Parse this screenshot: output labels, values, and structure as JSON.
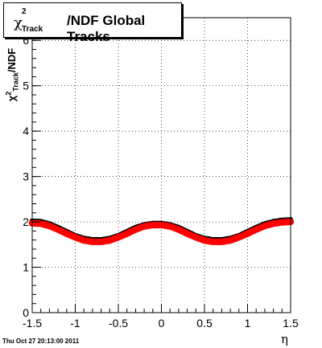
{
  "title": {
    "chi": "χ",
    "sup": "2",
    "sub": "Track",
    "main": "/NDF  Global Tracks"
  },
  "y_axis_label": {
    "chi": "χ",
    "sup": "2",
    "sub": "Track",
    "rest": "/NDF"
  },
  "x_axis_label": "η",
  "timestamp": "Thu Oct 27 20:13:00 2011",
  "chart_data": {
    "type": "scatter",
    "title": "χ²Track/NDF  Global Tracks",
    "xlabel": "η",
    "ylabel": "χ²Track/NDF",
    "xlim": [
      -1.5,
      1.5
    ],
    "ylim": [
      0,
      6.5
    ],
    "x_ticks": [
      "-1.5",
      "-1",
      "-0.5",
      "0",
      "0.5",
      "1",
      "1.5"
    ],
    "y_ticks": [
      "0",
      "1",
      "2",
      "3",
      "4",
      "5",
      "6"
    ],
    "grid": true,
    "colors": {
      "upper": "#000000",
      "lower": "#ff0000"
    },
    "series": [
      {
        "x": [
          -1.5,
          -1.4,
          -1.3,
          -1.2,
          -1.1,
          -1.0,
          -0.9,
          -0.8,
          -0.7,
          -0.6,
          -0.5,
          -0.4,
          -0.3,
          -0.2,
          -0.1,
          0.0,
          0.1,
          0.2,
          0.3,
          0.4,
          0.5,
          0.6,
          0.7,
          0.8,
          0.9,
          1.0,
          1.1,
          1.2,
          1.3,
          1.4,
          1.5
        ],
        "values": [
          2.02,
          2.01,
          1.96,
          1.88,
          1.79,
          1.7,
          1.64,
          1.61,
          1.61,
          1.64,
          1.7,
          1.79,
          1.88,
          1.94,
          1.97,
          1.97,
          1.94,
          1.88,
          1.79,
          1.7,
          1.64,
          1.61,
          1.61,
          1.64,
          1.7,
          1.79,
          1.88,
          1.96,
          2.01,
          2.04,
          2.05
        ]
      },
      {
        "x": [
          -1.5,
          -1.4,
          -1.3,
          -1.2,
          -1.1,
          -1.0,
          -0.9,
          -0.8,
          -0.7,
          -0.6,
          -0.5,
          -0.4,
          -0.3,
          -0.2,
          -0.1,
          0.0,
          0.1,
          0.2,
          0.3,
          0.4,
          0.5,
          0.6,
          0.7,
          0.8,
          0.9,
          1.0,
          1.1,
          1.2,
          1.3,
          1.4,
          1.5
        ],
        "values": [
          1.97,
          1.96,
          1.91,
          1.83,
          1.74,
          1.66,
          1.59,
          1.56,
          1.56,
          1.59,
          1.66,
          1.74,
          1.83,
          1.9,
          1.93,
          1.93,
          1.9,
          1.83,
          1.74,
          1.66,
          1.59,
          1.56,
          1.56,
          1.59,
          1.66,
          1.74,
          1.83,
          1.91,
          1.96,
          1.99,
          2.0
        ]
      }
    ]
  }
}
